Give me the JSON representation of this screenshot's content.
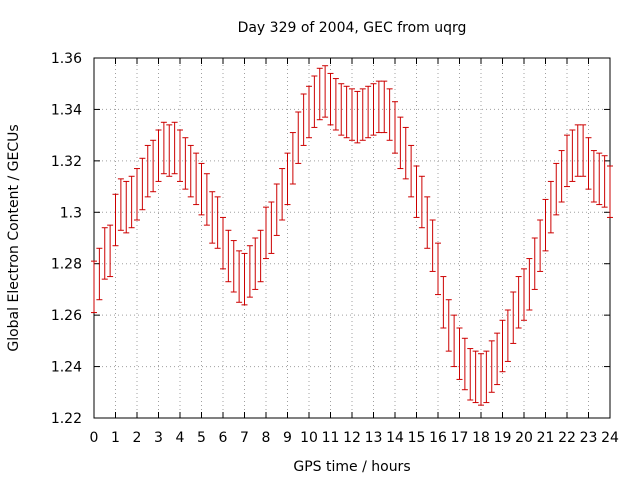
{
  "chart_data": {
    "type": "errorbar",
    "title": "Day 329 of 2004, GEC from uqrg",
    "xlabel": "GPS time / hours",
    "ylabel": "Global Electron Content / GECUs",
    "xlim": [
      0,
      24
    ],
    "ylim": [
      1.22,
      1.36
    ],
    "xticks": [
      0,
      1,
      2,
      3,
      4,
      5,
      6,
      7,
      8,
      9,
      10,
      11,
      12,
      13,
      14,
      15,
      16,
      17,
      18,
      19,
      20,
      21,
      22,
      23,
      24
    ],
    "xtick_labels": [
      "0",
      "1",
      "2",
      "3",
      "4",
      "5",
      "6",
      "7",
      "8",
      "9",
      "10",
      "11",
      "12",
      "13",
      "14",
      "15",
      "16",
      "17",
      "18",
      "19",
      "20",
      "21",
      "22",
      "23",
      "24"
    ],
    "yticks": [
      1.22,
      1.24,
      1.26,
      1.28,
      1.3,
      1.32,
      1.34,
      1.36
    ],
    "ytick_labels": [
      "1.22",
      "1.24",
      "1.26",
      "1.28",
      "1.3",
      "1.32",
      "1.34",
      "1.36"
    ],
    "grid": true,
    "series_color": "#cc0000",
    "x": [
      0,
      0.25,
      0.5,
      0.75,
      1,
      1.25,
      1.5,
      1.75,
      2,
      2.25,
      2.5,
      2.75,
      3,
      3.25,
      3.5,
      3.75,
      4,
      4.25,
      4.5,
      4.75,
      5,
      5.25,
      5.5,
      5.75,
      6,
      6.25,
      6.5,
      6.75,
      7,
      7.25,
      7.5,
      7.75,
      8,
      8.25,
      8.5,
      8.75,
      9,
      9.25,
      9.5,
      9.75,
      10,
      10.25,
      10.5,
      10.75,
      11,
      11.25,
      11.5,
      11.75,
      12,
      12.25,
      12.5,
      12.75,
      13,
      13.25,
      13.5,
      13.75,
      14,
      14.25,
      14.5,
      14.75,
      15,
      15.25,
      15.5,
      15.75,
      16,
      16.25,
      16.5,
      16.75,
      17,
      17.25,
      17.5,
      17.75,
      18,
      18.25,
      18.5,
      18.75,
      19,
      19.25,
      19.5,
      19.75,
      20,
      20.25,
      20.5,
      20.75,
      21,
      21.25,
      21.5,
      21.75,
      22,
      22.25,
      22.5,
      22.75,
      23,
      23.25,
      23.5,
      23.75,
      24
    ],
    "y": [
      1.271,
      1.276,
      1.284,
      1.285,
      1.297,
      1.303,
      1.302,
      1.304,
      1.307,
      1.311,
      1.316,
      1.318,
      1.322,
      1.325,
      1.324,
      1.325,
      1.322,
      1.319,
      1.316,
      1.313,
      1.309,
      1.305,
      1.298,
      1.296,
      1.288,
      1.283,
      1.279,
      1.275,
      1.274,
      1.277,
      1.28,
      1.283,
      1.292,
      1.294,
      1.301,
      1.307,
      1.313,
      1.321,
      1.329,
      1.336,
      1.339,
      1.343,
      1.346,
      1.347,
      1.344,
      1.342,
      1.34,
      1.339,
      1.338,
      1.337,
      1.338,
      1.339,
      1.34,
      1.341,
      1.341,
      1.338,
      1.333,
      1.327,
      1.323,
      1.316,
      1.308,
      1.304,
      1.296,
      1.287,
      1.278,
      1.265,
      1.256,
      1.25,
      1.245,
      1.241,
      1.237,
      1.236,
      1.235,
      1.236,
      1.24,
      1.243,
      1.248,
      1.252,
      1.259,
      1.265,
      1.268,
      1.272,
      1.28,
      1.287,
      1.295,
      1.302,
      1.309,
      1.314,
      1.32,
      1.322,
      1.324,
      1.324,
      1.319,
      1.314,
      1.313,
      1.312,
      1.308
    ],
    "error": 0.01
  }
}
